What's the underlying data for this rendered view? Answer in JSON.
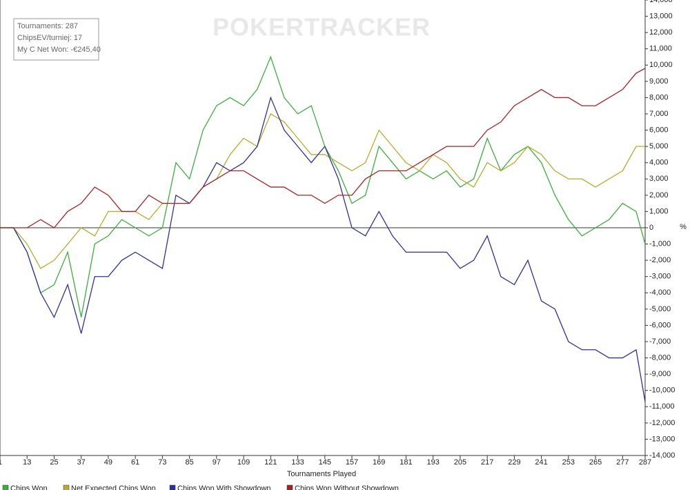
{
  "chart_data": {
    "type": "line",
    "watermark": "POKERTRACKER",
    "info": [
      "Tournaments: 287",
      "ChipsEV/turniej: 17",
      "My C Net Won: -€245,40"
    ],
    "x_label": "Tournaments Played",
    "y2_label": "%",
    "xlim": [
      1,
      287
    ],
    "xticks": [
      1,
      13,
      25,
      37,
      49,
      61,
      73,
      85,
      97,
      109,
      121,
      133,
      145,
      157,
      169,
      181,
      193,
      205,
      217,
      229,
      241,
      253,
      265,
      277,
      287
    ],
    "ylim": [
      -14000,
      14000
    ],
    "yticks": [
      {
        "value": -14000,
        "label": "-14,000"
      },
      {
        "value": -13000,
        "label": "-13,000"
      },
      {
        "value": -12000,
        "label": "-12,000"
      },
      {
        "value": -11000,
        "label": "-11,000"
      },
      {
        "value": -10000,
        "label": "-10,000"
      },
      {
        "value": -9000,
        "label": "-9,000"
      },
      {
        "value": -8000,
        "label": "-8,000"
      },
      {
        "value": -7000,
        "label": "-7,000"
      },
      {
        "value": -6000,
        "label": "-6,000"
      },
      {
        "value": -5000,
        "label": "-5,000"
      },
      {
        "value": -4000,
        "label": "-4,000"
      },
      {
        "value": -3000,
        "label": "-3,000"
      },
      {
        "value": -2000,
        "label": "-2,000"
      },
      {
        "value": -1000,
        "label": "-1,000"
      },
      0,
      {
        "value": 1000,
        "label": "1,000"
      },
      {
        "value": 2000,
        "label": "2,000"
      },
      {
        "value": 3000,
        "label": "3,000"
      },
      {
        "value": 4000,
        "label": "4,000"
      },
      {
        "value": 5000,
        "label": "5,000"
      },
      {
        "value": 6000,
        "label": "6,000"
      },
      {
        "value": 7000,
        "label": "7,000"
      },
      {
        "value": 8000,
        "label": "8,000"
      },
      {
        "value": 9000,
        "label": "9,000"
      },
      {
        "value": 10000,
        "label": "10,000"
      },
      {
        "value": 11000,
        "label": "11,000"
      },
      {
        "value": 12000,
        "label": "12,000"
      },
      {
        "value": 13000,
        "label": "13,000"
      },
      {
        "value": 14000,
        "label": "14,000"
      }
    ],
    "x": [
      1,
      7,
      13,
      19,
      25,
      31,
      37,
      43,
      49,
      55,
      61,
      67,
      73,
      79,
      85,
      91,
      97,
      103,
      109,
      115,
      121,
      127,
      133,
      139,
      145,
      151,
      157,
      163,
      169,
      175,
      181,
      187,
      193,
      199,
      205,
      211,
      217,
      223,
      229,
      235,
      241,
      247,
      253,
      259,
      265,
      271,
      277,
      283,
      287
    ],
    "series": [
      {
        "name": "Chips Won",
        "color": "#3aae3a",
        "values": [
          0,
          0,
          -1500,
          -4000,
          -3500,
          -1500,
          -5500,
          -1000,
          -500,
          500,
          0,
          -500,
          0,
          4000,
          3000,
          6000,
          7500,
          8000,
          7500,
          8500,
          10500,
          8000,
          7000,
          7500,
          5000,
          3500,
          1500,
          2000,
          5000,
          4000,
          3000,
          3500,
          3000,
          3500,
          2500,
          3000,
          5500,
          3500,
          4500,
          5000,
          4000,
          2000,
          500,
          -500,
          0,
          500,
          1500,
          1000,
          -1000
        ]
      },
      {
        "name": "Net Expected Chips Won",
        "color": "#b5ad2c",
        "values": [
          0,
          0,
          -1000,
          -2500,
          -2000,
          -1000,
          0,
          -500,
          1000,
          1000,
          1000,
          500,
          1500,
          1500,
          1500,
          2500,
          3000,
          4500,
          5500,
          5000,
          7000,
          6500,
          5500,
          4500,
          4500,
          4000,
          3500,
          4000,
          6000,
          5000,
          4000,
          3500,
          4500,
          4000,
          3000,
          2500,
          4000,
          3500,
          4000,
          5000,
          4500,
          3500,
          3000,
          3000,
          2500,
          3000,
          3500,
          5000,
          5000
        ]
      },
      {
        "name": "Chips Won With Showdown",
        "color": "#2e2e9e",
        "values": [
          0,
          0,
          -1500,
          -4000,
          -5500,
          -3500,
          -6500,
          -3000,
          -3000,
          -2000,
          -1500,
          -2000,
          -2500,
          2000,
          1500,
          2500,
          4000,
          3500,
          4000,
          5000,
          8000,
          6000,
          5000,
          4000,
          5000,
          3000,
          0,
          -500,
          1000,
          -500,
          -1500,
          -1500,
          -1500,
          -1500,
          -2500,
          -2000,
          -500,
          -3000,
          -3500,
          -2000,
          -4500,
          -5000,
          -7000,
          -7500,
          -7500,
          -8000,
          -8000,
          -7500,
          -10700
        ]
      },
      {
        "name": "Chips Won Without Showdown",
        "color": "#a52222",
        "values": [
          0,
          0,
          0,
          500,
          0,
          1000,
          1500,
          2500,
          2000,
          1000,
          1000,
          2000,
          1500,
          1500,
          1500,
          2500,
          3000,
          3500,
          3500,
          3000,
          2500,
          2500,
          2000,
          2000,
          1500,
          2000,
          2000,
          3000,
          3500,
          3500,
          3500,
          4000,
          4500,
          5000,
          5000,
          5000,
          6000,
          6500,
          7500,
          8000,
          8500,
          8000,
          8000,
          7500,
          7500,
          8000,
          8500,
          9500,
          9800
        ]
      }
    ]
  }
}
